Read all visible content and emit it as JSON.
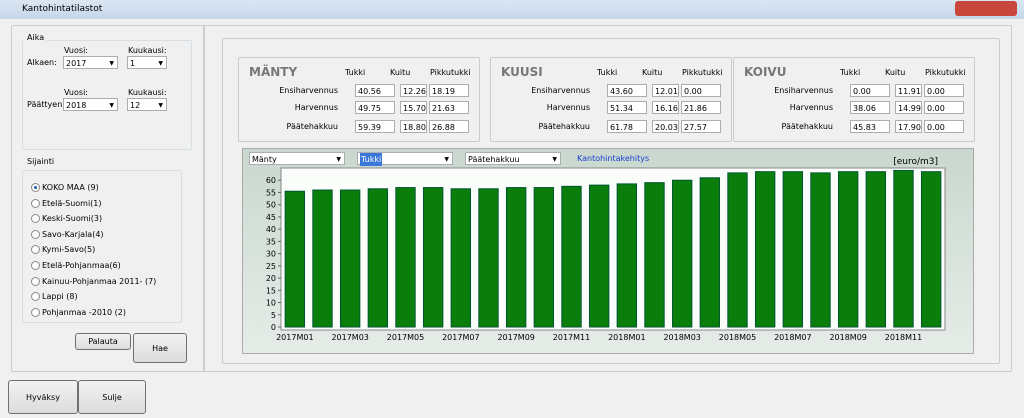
{
  "window": {
    "title": "Kantohintatilastot"
  },
  "aika": {
    "title": "Aika",
    "rows": [
      {
        "label": "Alkaen:",
        "year_label": "Vuosi:",
        "month_label": "Kuukausi:",
        "year": "2017",
        "month": "1"
      },
      {
        "label": "Päättyen:",
        "year_label": "Vuosi:",
        "month_label": "Kuukausi:",
        "year": "2018",
        "month": "12"
      }
    ]
  },
  "sijainti": {
    "title": "Sijainti",
    "selected": 0,
    "options": [
      "KOKO MAA (9)",
      "Etelä-Suomi(1)",
      "Keski-Suomi(3)",
      "Savo-Karjala(4)",
      "Kymi-Savo(5)",
      "Etelä-Pohjanmaa(6)",
      "Kainuu-Pohjanmaa 2011- (7)",
      "Lappi (8)",
      "Pohjanmaa -2010 (2)"
    ]
  },
  "buttons": {
    "palauta": "Palauta",
    "hae": "Hae",
    "hyvaksy": "Hyväksy",
    "sulje": "Sulje"
  },
  "price_groups": [
    {
      "name": "MÄNTY",
      "columns": [
        "Tukki",
        "Kuitu",
        "Pikkutukki"
      ],
      "rows": [
        {
          "label": "Ensiharvennus",
          "values": [
            "40.56",
            "12.26",
            "18.19"
          ]
        },
        {
          "label": "Harvennus",
          "values": [
            "49.75",
            "15.70",
            "21.63"
          ]
        },
        {
          "label": "Päätehakkuu",
          "values": [
            "59.39",
            "18.80",
            "26.88"
          ]
        }
      ]
    },
    {
      "name": "KUUSI",
      "columns": [
        "Tukki",
        "Kuitu",
        "Pikkutukki"
      ],
      "rows": [
        {
          "label": "Ensiharvennus",
          "values": [
            "43.60",
            "12.01",
            "0.00"
          ]
        },
        {
          "label": "Harvennus",
          "values": [
            "51.34",
            "16.16",
            "21.86"
          ]
        },
        {
          "label": "Päätehakkuu",
          "values": [
            "61.78",
            "20.03",
            "27.57"
          ]
        }
      ]
    },
    {
      "name": "KOIVU",
      "columns": [
        "Tukki",
        "Kuitu",
        "Pikkutukki"
      ],
      "rows": [
        {
          "label": "Ensiharvennus",
          "values": [
            "0.00",
            "11.91",
            "0.00"
          ]
        },
        {
          "label": "Harvennus",
          "values": [
            "38.06",
            "14.99",
            "0.00"
          ]
        },
        {
          "label": "Päätehakkuu",
          "values": [
            "45.83",
            "17.90",
            "0.00"
          ]
        }
      ]
    }
  ],
  "chart_controls": {
    "selectors": [
      "Mänty",
      "Tukki",
      "Päätehakkuu"
    ],
    "link": "Kantohintakehitys"
  },
  "chart_data": {
    "type": "bar",
    "unit": "[euro/m3]",
    "color": "#0b7d0b",
    "grid": false,
    "categories": [
      "2017M01",
      null,
      "2017M03",
      null,
      "2017M05",
      null,
      "2017M07",
      null,
      "2017M09",
      null,
      "2017M11",
      null,
      "2018M01",
      null,
      "2018M03",
      null,
      "2018M05",
      null,
      "2018M07",
      null,
      "2018M09",
      null,
      "2018M11",
      null
    ],
    "values": [
      55.5,
      56,
      56,
      56.5,
      57,
      57,
      56.5,
      56.5,
      57,
      57,
      57.5,
      58,
      58.5,
      59,
      60,
      61,
      63,
      63.5,
      63.5,
      63,
      63.5,
      63.5,
      64,
      63.5
    ],
    "ylim": [
      0,
      65
    ],
    "yticks": [
      0,
      5,
      10,
      15,
      20,
      25,
      30,
      35,
      40,
      45,
      50,
      55,
      60
    ]
  }
}
